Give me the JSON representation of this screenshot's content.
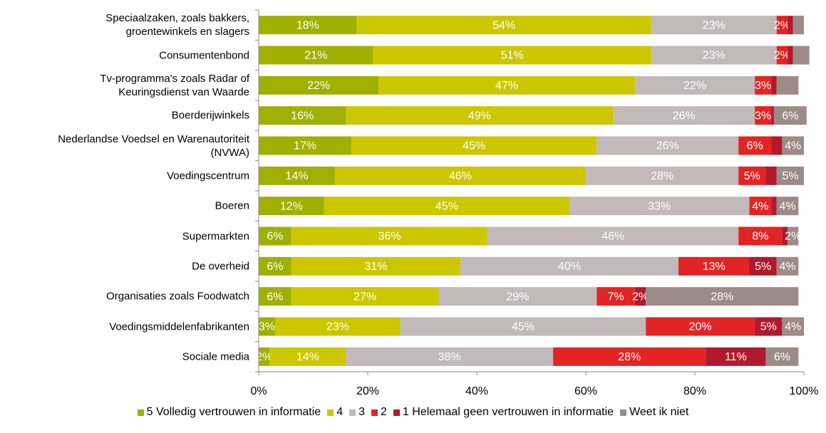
{
  "chart_data": {
    "type": "stacked_barh",
    "categories": [
      "Speciaalzaken, zoals bakkers,\ngroentewinkels en slagers",
      "Consumentenbond",
      "Tv-programma's zoals Radar of\nKeuringsdienst van Waarde",
      "Boerderijwinkels",
      "Nederlandse Voedsel en Warenautoriteit\n(NVWA)",
      "Voedingscentrum",
      "Boeren",
      "Supermarkten",
      "De overheid",
      "Organisaties zoals Foodwatch",
      "Voedingsmiddelenfabrikanten",
      "Sociale media"
    ],
    "series": [
      {
        "name": "5 Volledig vertrouwen in informatie",
        "color": "#a0b000",
        "values": [
          18,
          21,
          22,
          16,
          17,
          14,
          12,
          6,
          6,
          6,
          3,
          2
        ],
        "value_labels": [
          "18%",
          "21%",
          "22%",
          "16%",
          "17%",
          "14%",
          "12%",
          "6%",
          "6%",
          "6%",
          "3%",
          "2%"
        ]
      },
      {
        "name": "4",
        "color": "#cdc700",
        "values": [
          54,
          51,
          47,
          49,
          45,
          46,
          45,
          36,
          31,
          27,
          23,
          14
        ],
        "value_labels": [
          "54%",
          "51%",
          "47%",
          "49%",
          "45%",
          "46%",
          "45%",
          "36%",
          "31%",
          "27%",
          "23%",
          "14%"
        ]
      },
      {
        "name": "3",
        "color": "#c2bab8",
        "values": [
          23,
          23,
          22,
          26,
          26,
          28,
          33,
          46,
          40,
          29,
          45,
          38
        ],
        "value_labels": [
          "23%",
          "23%",
          "22%",
          "26%",
          "26%",
          "28%",
          "33%",
          "46%",
          "40%",
          "29%",
          "45%",
          "38%"
        ]
      },
      {
        "name": "2",
        "color": "#e32424",
        "values": [
          2,
          2,
          3,
          3,
          6,
          5,
          4,
          8,
          13,
          7,
          20,
          28
        ],
        "value_labels": [
          "2%",
          "2%",
          "3%",
          "3%",
          "6%",
          "5%",
          "4%",
          "8%",
          "13%",
          "7%",
          "20%",
          "28%"
        ]
      },
      {
        "name": "1 Helemaal geen vertrouwen in informatie",
        "color": "#b01a2c",
        "values": [
          1,
          1,
          1,
          0.5,
          2,
          2,
          1,
          1,
          5,
          2,
          5,
          11
        ],
        "value_labels": [
          null,
          null,
          null,
          null,
          null,
          null,
          null,
          null,
          "5%",
          "2%",
          "5%",
          "11%"
        ]
      },
      {
        "name": "Weet ik niet",
        "color": "#9c8b87",
        "values": [
          2,
          3,
          4,
          6,
          4,
          5,
          4,
          2,
          4,
          28,
          4,
          6
        ],
        "value_labels": [
          null,
          null,
          null,
          "6%",
          "4%",
          "5%",
          "4%",
          "2%",
          "4%",
          "28%",
          "4%",
          "6%"
        ]
      }
    ],
    "xlim": [
      0,
      100
    ],
    "xticks": [
      {
        "value": 0,
        "label": "0%"
      },
      {
        "value": 20,
        "label": "20%"
      },
      {
        "value": 40,
        "label": "40%"
      },
      {
        "value": 60,
        "label": "60%"
      },
      {
        "value": 80,
        "label": "80%"
      },
      {
        "value": 100,
        "label": "100%"
      }
    ],
    "legend": "bottom"
  }
}
